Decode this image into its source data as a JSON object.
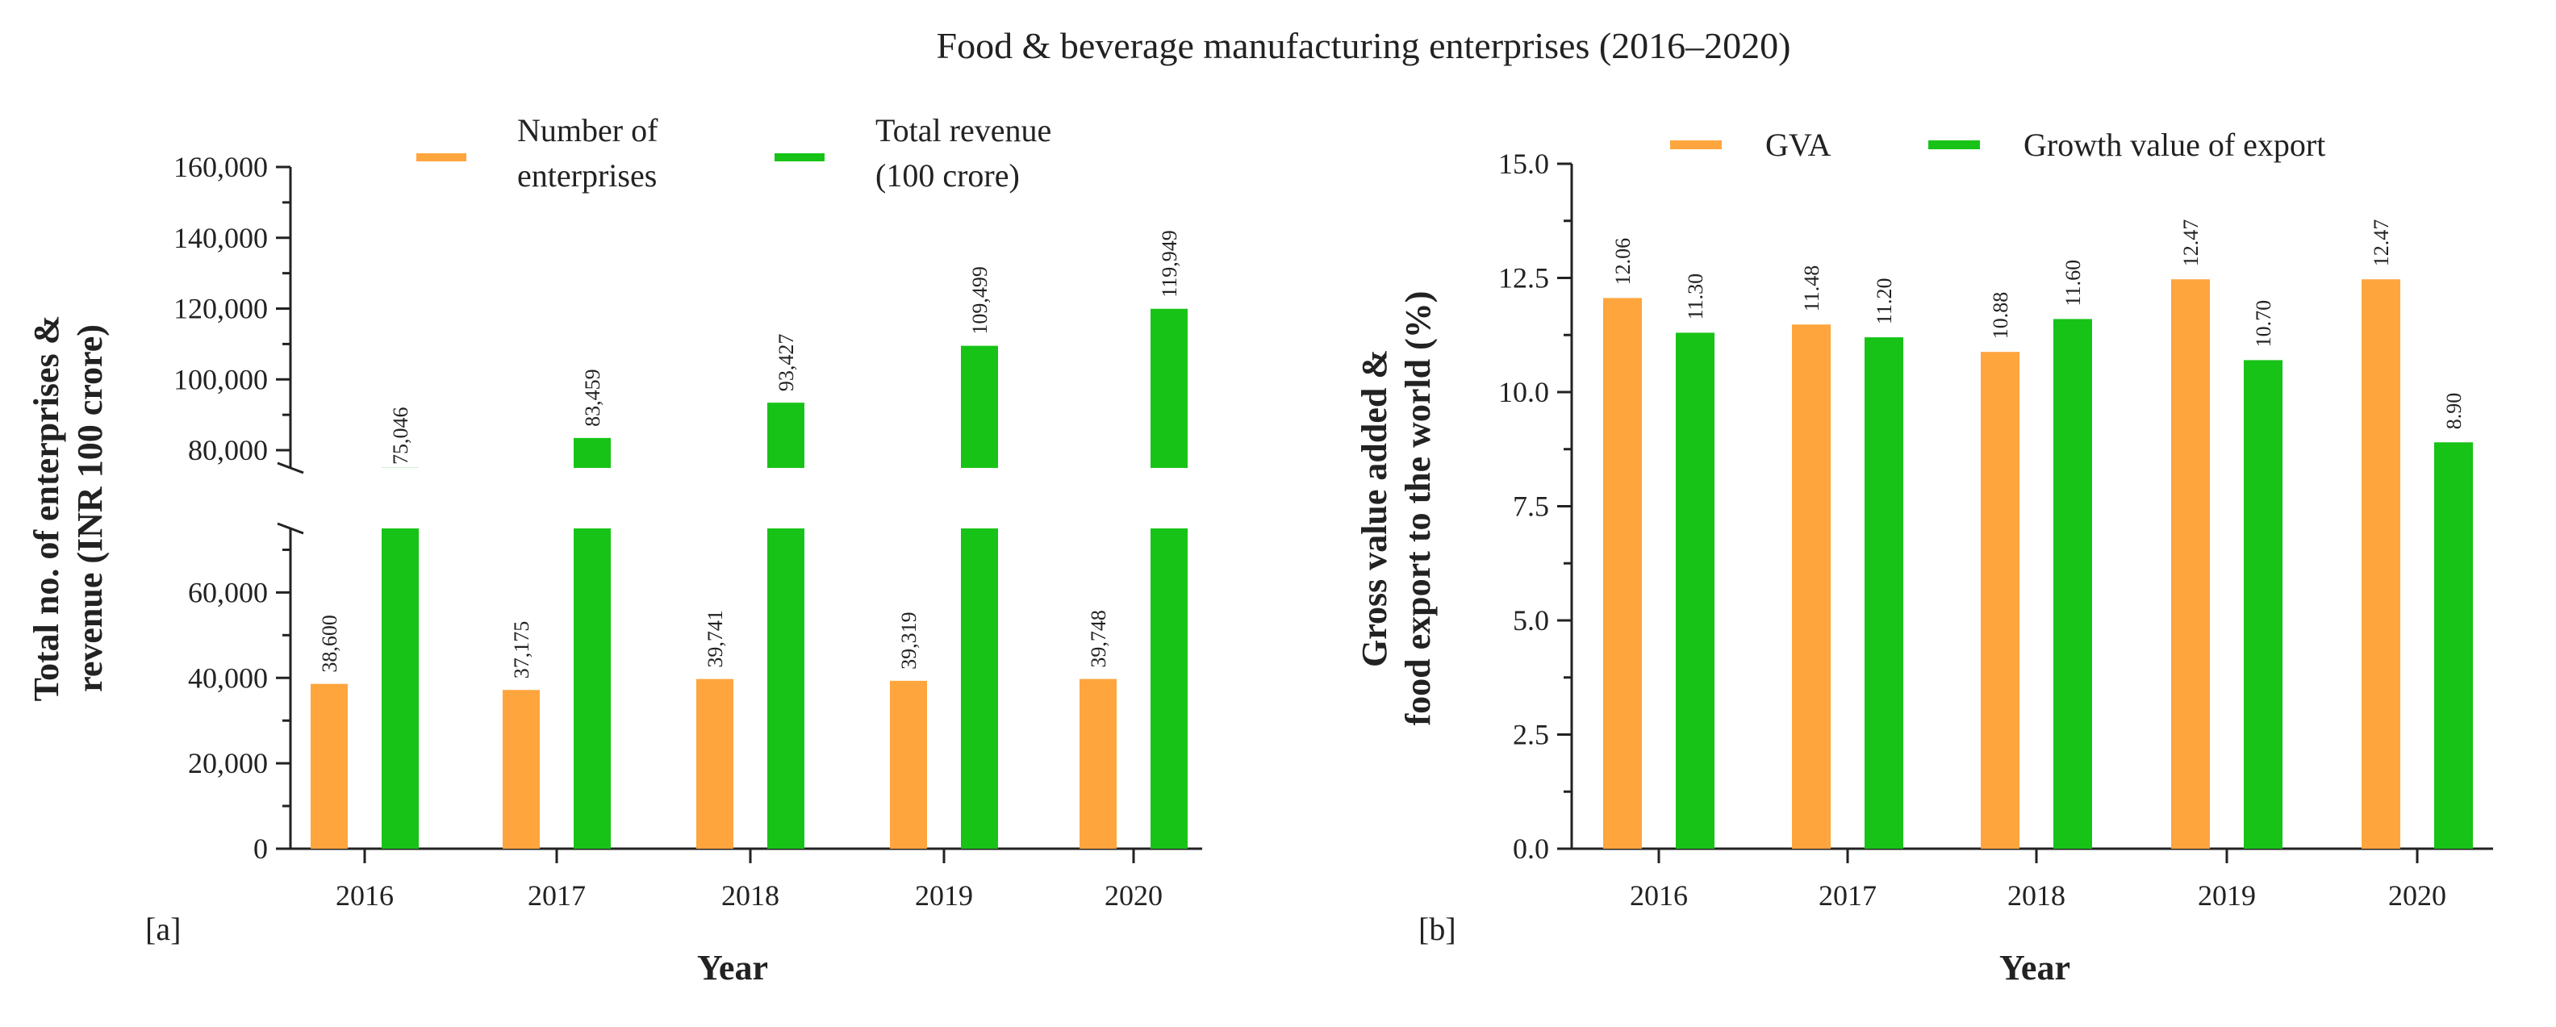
{
  "title": "Food & beverage manufacturing enterprises (2016–2020)",
  "colors": {
    "orange": "#FFA53D",
    "green": "#17C317",
    "axis": "#222222"
  },
  "chart_data": [
    {
      "type": "bar",
      "panel_tag": "[a]",
      "categories": [
        "2016",
        "2017",
        "2018",
        "2019",
        "2020"
      ],
      "series": [
        {
          "name_lines": [
            "Number of",
            "enterprises"
          ],
          "color_key": "orange",
          "values": [
            38600,
            37175,
            39741,
            39319,
            39748
          ],
          "labels": [
            "38,600",
            "37,175",
            "39,741",
            "39,319",
            "39,748"
          ]
        },
        {
          "name_lines": [
            "Total revenue",
            "(100 crore)"
          ],
          "color_key": "green",
          "values": [
            75046,
            83459,
            93427,
            109499,
            119949
          ],
          "labels": [
            "75,046",
            "83,459",
            "93,427",
            "109,499",
            "119,949"
          ]
        }
      ],
      "xlabel": "Year",
      "ylabel_lines": [
        "Total no. of enterprises &",
        "revenue (INR 100 crore)"
      ],
      "axis_break": {
        "lower_range": [
          0,
          75000
        ],
        "upper_range": [
          75000,
          160000
        ]
      },
      "lower_ticks": [
        {
          "value": 0,
          "label": "0"
        },
        {
          "value": 20000,
          "label": "20,000"
        },
        {
          "value": 40000,
          "label": "40,000"
        },
        {
          "value": 60000,
          "label": "60,000"
        }
      ],
      "upper_ticks": [
        {
          "value": 80000,
          "label": "80,000"
        },
        {
          "value": 100000,
          "label": "100,000"
        },
        {
          "value": 120000,
          "label": "120,000"
        },
        {
          "value": 140000,
          "label": "140,000"
        },
        {
          "value": 160000,
          "label": "160,000"
        }
      ],
      "legend_position": "top"
    },
    {
      "type": "bar",
      "panel_tag": "[b]",
      "categories": [
        "2016",
        "2017",
        "2018",
        "2019",
        "2020"
      ],
      "series": [
        {
          "name": "GVA",
          "color_key": "orange",
          "values": [
            12.06,
            11.48,
            10.88,
            12.47,
            12.47
          ],
          "labels": [
            "12.06",
            "11.48",
            "10.88",
            "12.47",
            "12.47"
          ]
        },
        {
          "name": "Growth value of export",
          "color_key": "green",
          "values": [
            11.3,
            11.2,
            11.6,
            10.7,
            8.9
          ],
          "labels": [
            "11.30",
            "11.20",
            "11.60",
            "10.70",
            "8.90"
          ]
        }
      ],
      "xlabel": "Year",
      "ylabel_lines": [
        "Gross value added &",
        "food export to the world (%)"
      ],
      "ylim": [
        0,
        15
      ],
      "ticks": [
        {
          "value": 0,
          "label": "0.0"
        },
        {
          "value": 2.5,
          "label": "2.5"
        },
        {
          "value": 5,
          "label": "5.0"
        },
        {
          "value": 7.5,
          "label": "7.5"
        },
        {
          "value": 10,
          "label": "10.0"
        },
        {
          "value": 12.5,
          "label": "12.5"
        },
        {
          "value": 15,
          "label": "15.0"
        }
      ],
      "legend_position": "top"
    }
  ]
}
